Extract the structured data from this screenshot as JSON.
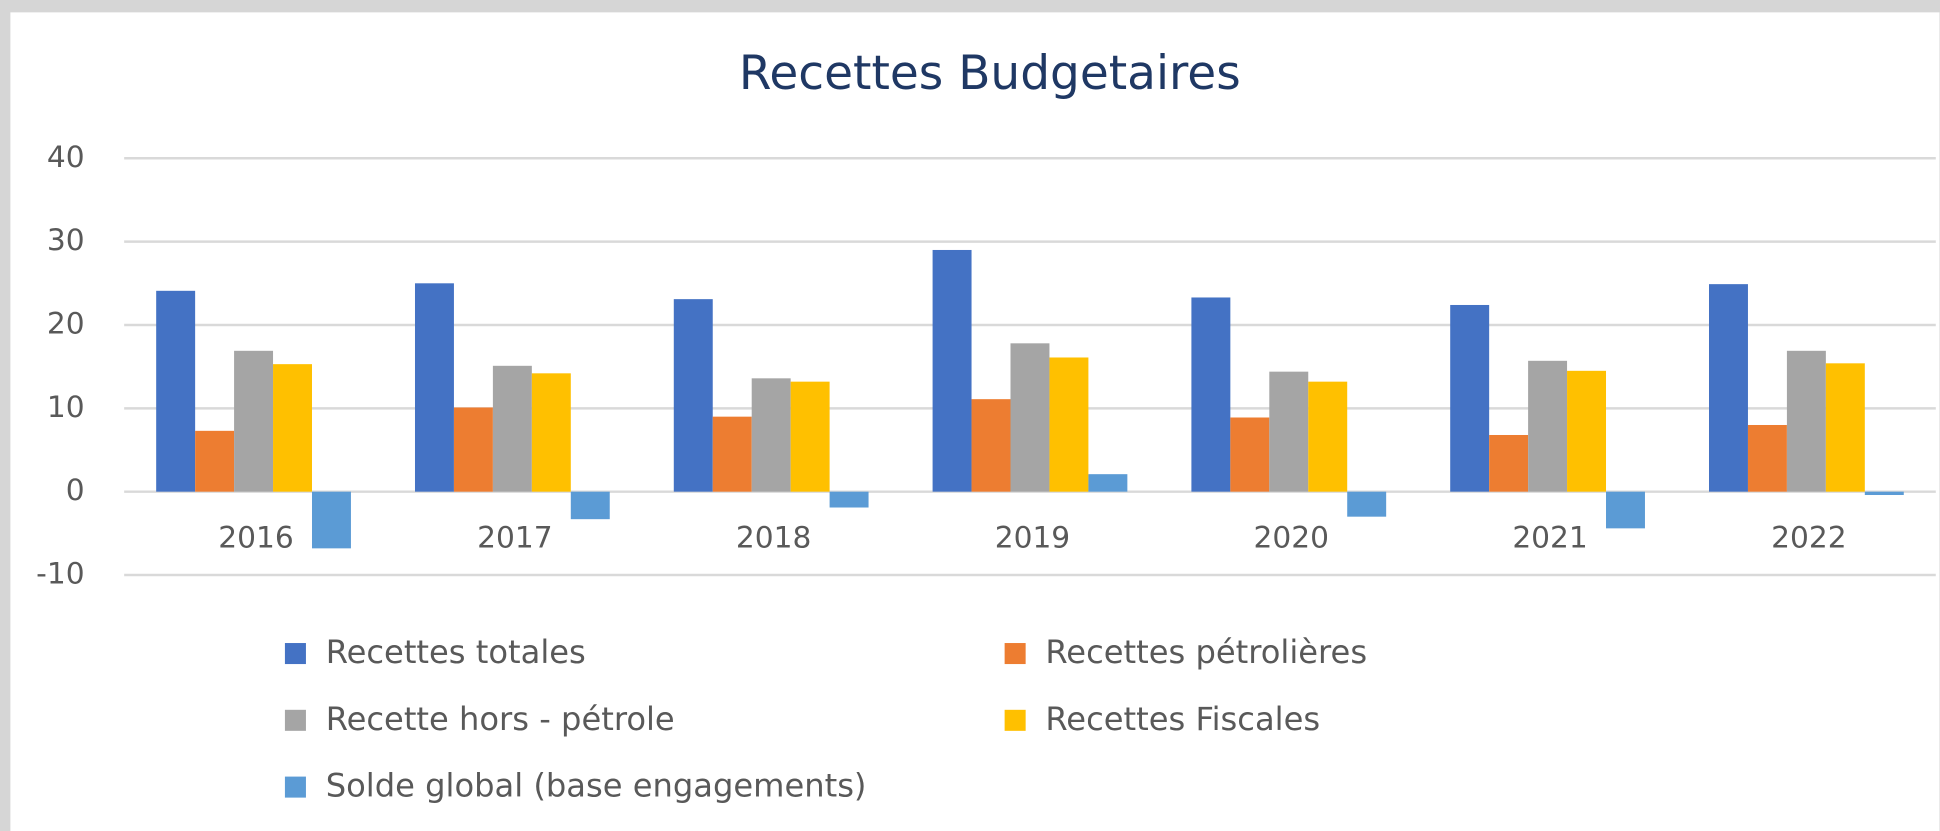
{
  "chart_data": {
    "type": "bar",
    "title": "Recettes  Budgetaires",
    "categories": [
      "2016",
      "2017",
      "2018",
      "2019",
      "2020",
      "2021",
      "2022"
    ],
    "series": [
      {
        "name": "Recettes totales",
        "color": "#4472c4",
        "values": [
          24.1,
          25.0,
          23.1,
          29.0,
          23.3,
          22.4,
          24.9
        ]
      },
      {
        "name": "Recettes pétrolières",
        "color": "#ed7d31",
        "values": [
          7.3,
          10.1,
          9.0,
          11.1,
          8.9,
          6.8,
          8.0
        ]
      },
      {
        "name": "Recette hors - pétrole",
        "color": "#a5a5a5",
        "values": [
          16.9,
          15.1,
          13.6,
          17.8,
          14.4,
          15.7,
          16.9
        ]
      },
      {
        "name": "Recettes Fiscales",
        "color": "#ffc000",
        "values": [
          15.3,
          14.2,
          13.2,
          16.1,
          13.2,
          14.5,
          15.4
        ]
      },
      {
        "name": "Solde global (base engagements)",
        "color": "#5b9bd5",
        "values": [
          -6.8,
          -3.3,
          -1.9,
          2.1,
          -3.0,
          -4.4,
          -0.4
        ]
      }
    ],
    "ylim": [
      -10,
      40
    ],
    "yticks": [
      -10,
      0,
      10,
      20,
      30,
      40
    ],
    "grid": true,
    "legend": "bottom"
  }
}
